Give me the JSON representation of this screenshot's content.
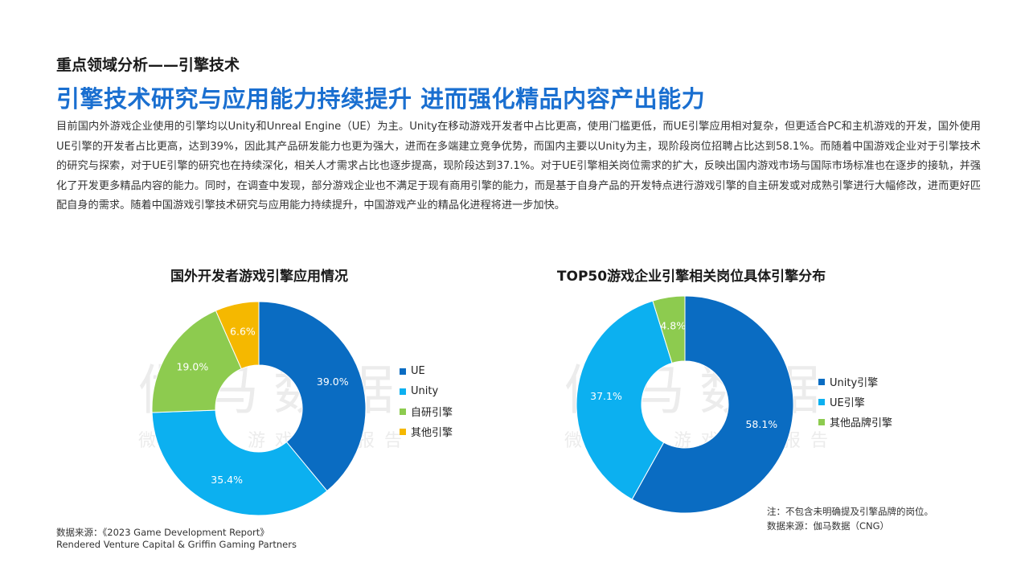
{
  "header": {
    "section_title": "重点领域分析——引擎技术",
    "main_title": "引擎技术研究与应用能力持续提升 进而强化精品内容产出能力",
    "body": "目前国内外游戏企业使用的引擎均以Unity和Unreal Engine（UE）为主。Unity在移动游戏开发者中占比更高，使用门槛更低，而UE引擎应用相对复杂，但更适合PC和主机游戏的开发，国外使用UE引擎的开发者占比更高，达到39%，因此其产品研发能力也更为强大，进而在多端建立竞争优势，而国内主要以Unity为主，现阶段岗位招聘占比达到58.1%。而随着中国游戏企业对于引擎技术的研究与探索，对于UE引擎的研究也在持续深化，相关人才需求占比也逐步提高，现阶段达到37.1%。对于UE引擎相关岗位需求的扩大，反映出国内游戏市场与国际市场标准也在逐步的接轨，并强化了开发更多精品内容的能力。同时，在调查中发现，部分游戏企业也不满足于现有商用引擎的能力，而是基于自身产品的开发特点进行游戏引擎的自主研发或对成熟引擎进行大幅修改，进而更好匹配自身的需求。随着中国游戏引擎技术研究与应用能力持续提升，中国游戏产业的精品化进程将进一步加快。"
  },
  "watermark": {
    "text": "伽马数据",
    "sub": "微信号：游戏产业报告"
  },
  "chart_data": [
    {
      "type": "pie",
      "donut": true,
      "title": "国外开发者游戏引擎应用情况",
      "categories": [
        "UE",
        "Unity",
        "自研引擎",
        "其他引擎"
      ],
      "values": [
        39.0,
        35.4,
        19.0,
        6.6
      ],
      "labels": [
        "39.0%",
        "35.4%",
        "19.0%",
        "6.6%"
      ],
      "colors": [
        "#0a6cc2",
        "#0cb0f0",
        "#8dcb4f",
        "#f5b800"
      ],
      "legend_position": "right"
    },
    {
      "type": "pie",
      "donut": true,
      "title": "TOP50游戏企业引擎相关岗位具体引擎分布",
      "categories": [
        "Unity引擎",
        "UE引擎",
        "其他品牌引擎"
      ],
      "values": [
        58.1,
        37.1,
        4.8
      ],
      "labels": [
        "58.1%",
        "37.1%",
        "4.8%"
      ],
      "colors": [
        "#0a6cc2",
        "#0cb0f0",
        "#8dcb4f"
      ],
      "legend_position": "right"
    }
  ],
  "footer": {
    "left_source_line1": "数据来源：《2023 Game Development Report》",
    "left_source_line2": "Rendered Venture Capital & Griffin Gaming Partners",
    "right_note": "注：不包含未明确提及引擎品牌的岗位。",
    "right_source": "数据来源：伽马数据（CNG）"
  }
}
